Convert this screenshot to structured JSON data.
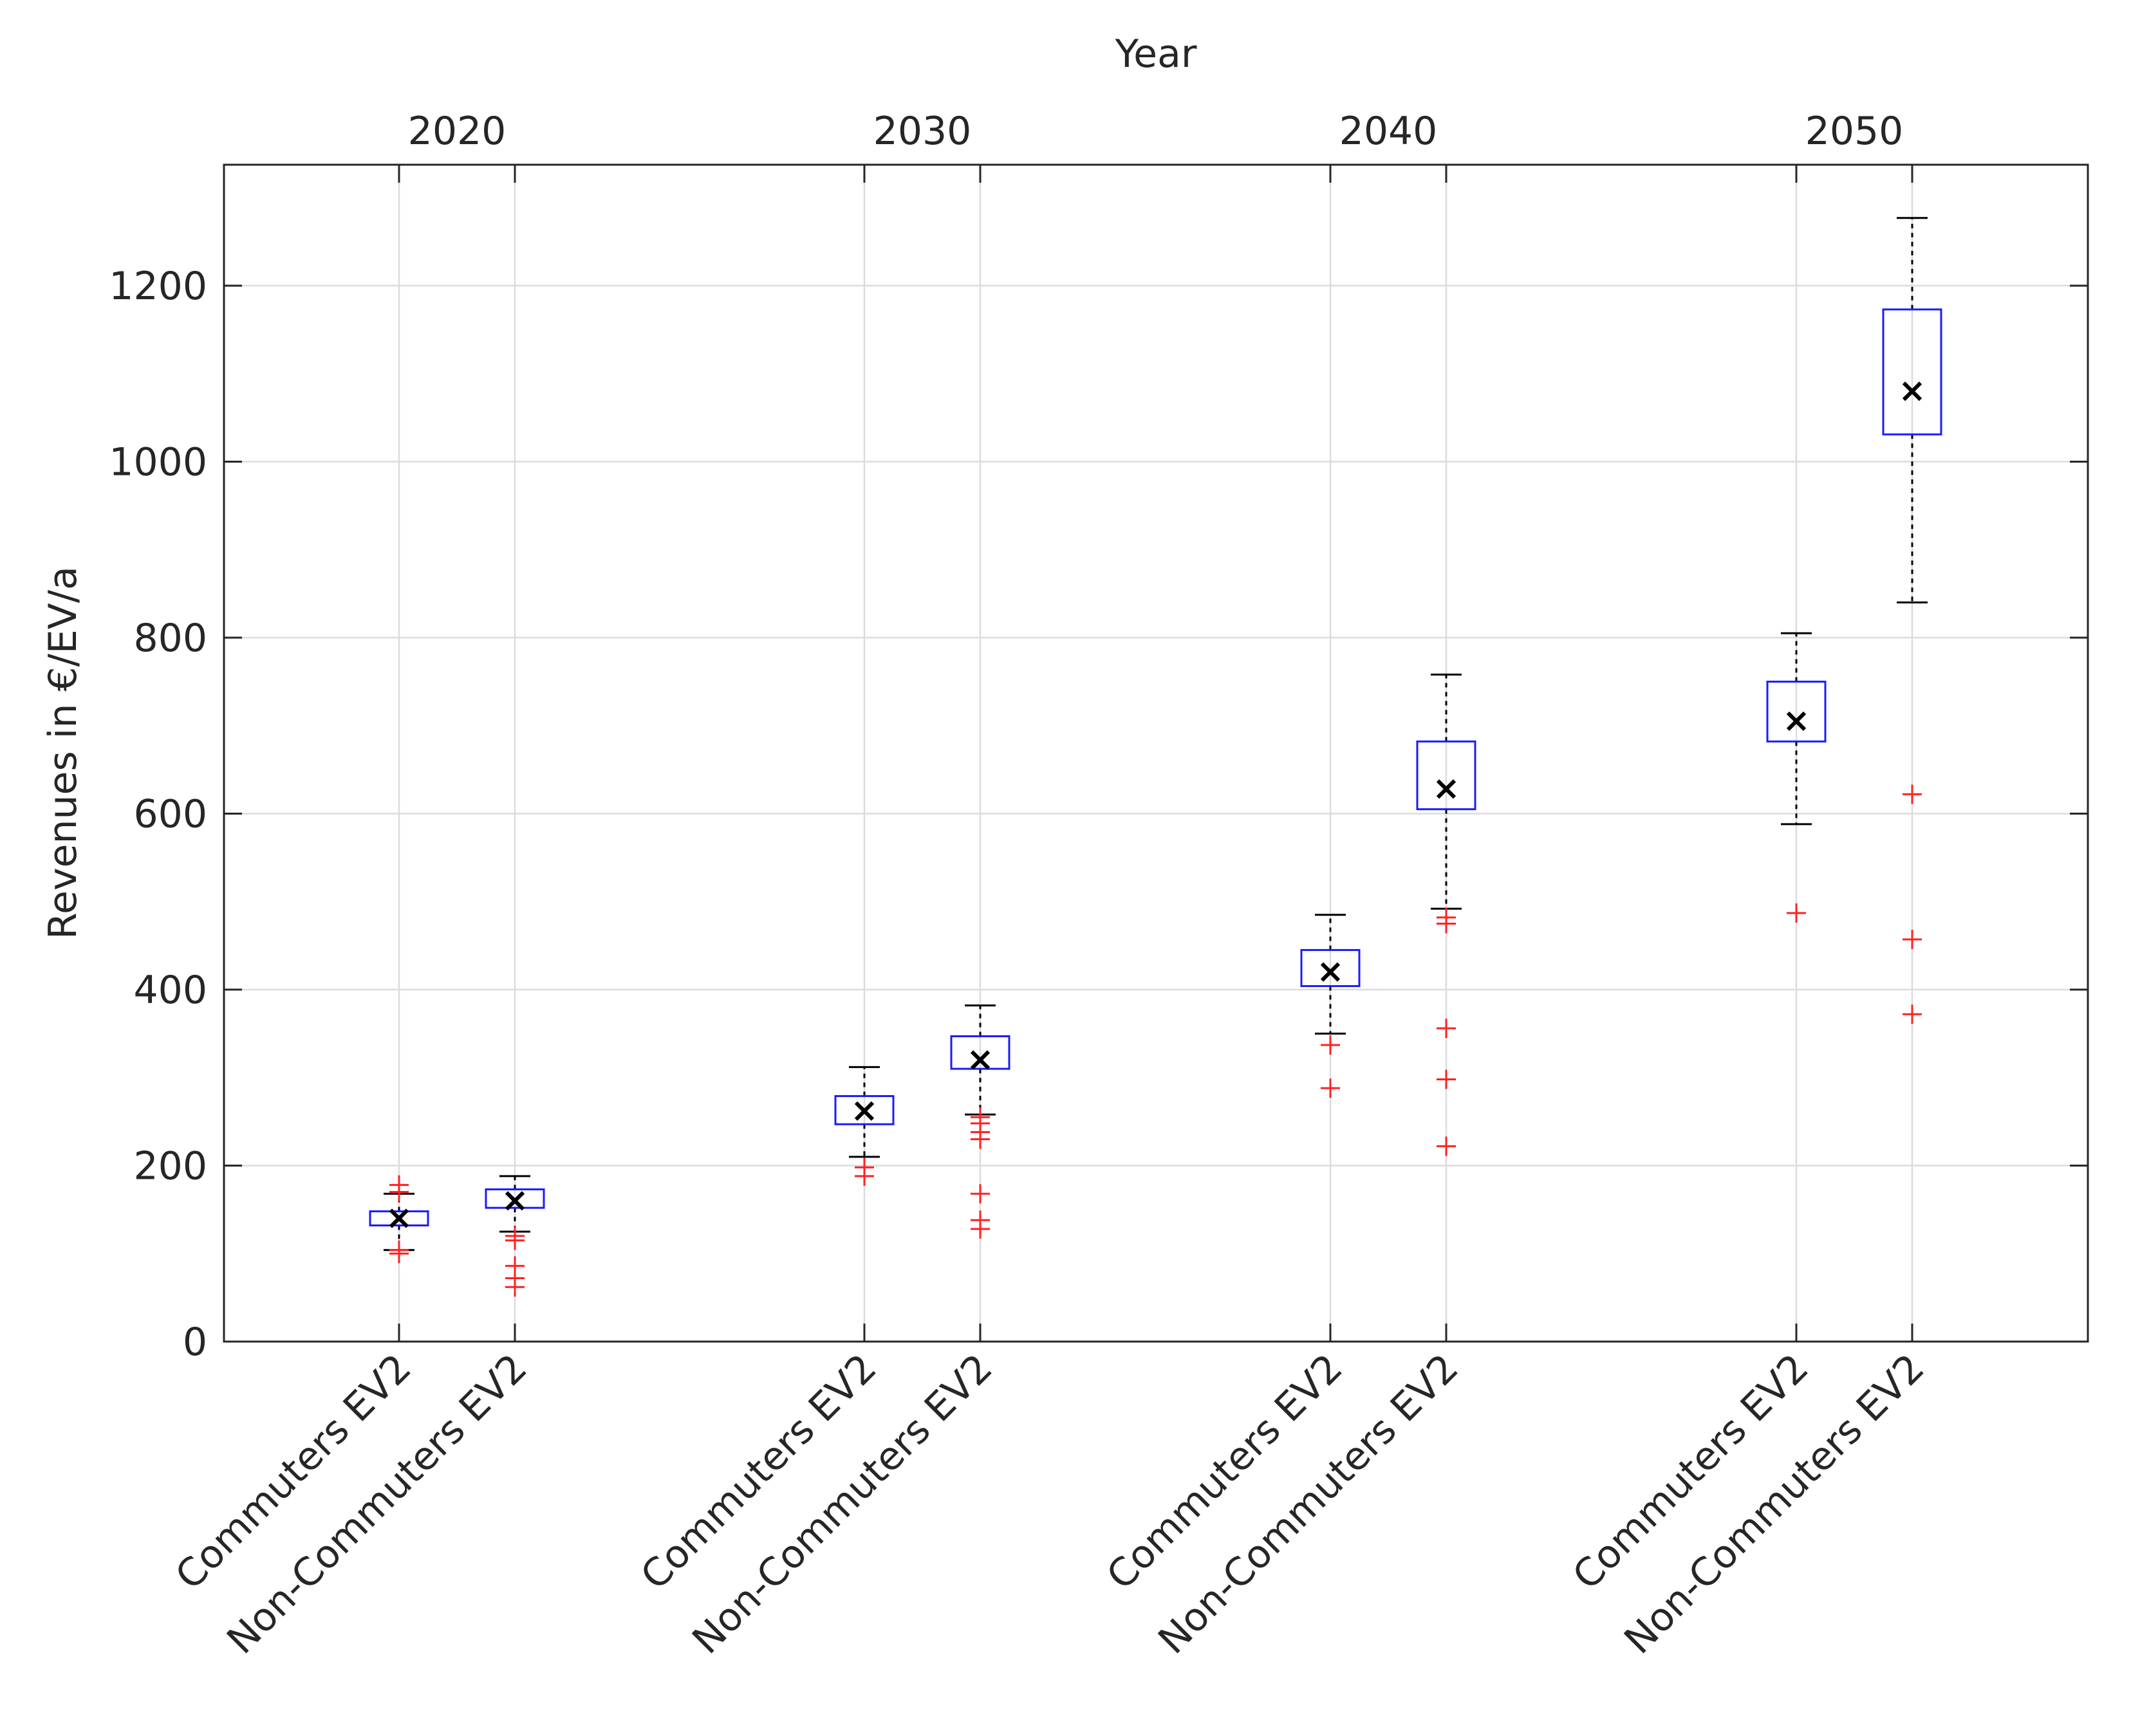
{
  "chart_data": {
    "type": "boxplot",
    "ylabel": "Revenues in €/EV/a",
    "top_xlabel": "Year",
    "yticks": [
      0,
      200,
      400,
      600,
      800,
      1000,
      1200
    ],
    "ylim": [
      0,
      1340
    ],
    "grid": true,
    "colors": {
      "box": "#1a1aff",
      "whisker": "#000000",
      "outlier": "#ff2020",
      "mean": "#000000"
    },
    "groups": [
      {
        "year": "2020",
        "boxes": [
          {
            "label": "Commuters EV2",
            "q1": 132,
            "q3": 148,
            "whisker_low": 104,
            "whisker_high": 168,
            "mean": 140,
            "outliers": [
              100,
              104,
              170,
              178
            ]
          },
          {
            "label": "Non-Commuters EV2",
            "q1": 152,
            "q3": 173,
            "whisker_low": 125,
            "whisker_high": 188,
            "mean": 160,
            "outliers": [
              62,
              72,
              86,
              115,
              120
            ]
          }
        ]
      },
      {
        "year": "2030",
        "boxes": [
          {
            "label": "Commuters EV2",
            "q1": 247,
            "q3": 279,
            "whisker_low": 210,
            "whisker_high": 312,
            "mean": 262,
            "outliers": [
              188,
              198
            ]
          },
          {
            "label": "Non-Commuters EV2",
            "q1": 310,
            "q3": 347,
            "whisker_low": 258,
            "whisker_high": 382,
            "mean": 320,
            "outliers": [
              128,
              138,
              168,
              230,
              238,
              248,
              255
            ]
          }
        ]
      },
      {
        "year": "2040",
        "boxes": [
          {
            "label": "Commuters EV2",
            "q1": 404,
            "q3": 445,
            "whisker_low": 350,
            "whisker_high": 485,
            "mean": 420,
            "outliers": [
              288,
              337
            ]
          },
          {
            "label": "Non-Commuters EV2",
            "q1": 605,
            "q3": 682,
            "whisker_low": 492,
            "whisker_high": 758,
            "mean": 628,
            "outliers": [
              222,
              298,
              356,
              475,
              482
            ]
          }
        ]
      },
      {
        "year": "2050",
        "boxes": [
          {
            "label": "Commuters EV2",
            "q1": 682,
            "q3": 750,
            "whisker_low": 588,
            "whisker_high": 805,
            "mean": 705,
            "outliers": [
              487
            ]
          },
          {
            "label": "Non-Commuters EV2",
            "q1": 1031,
            "q3": 1173,
            "whisker_low": 840,
            "whisker_high": 1277,
            "mean": 1080,
            "outliers": [
              372,
              457,
              622
            ]
          }
        ]
      }
    ]
  }
}
